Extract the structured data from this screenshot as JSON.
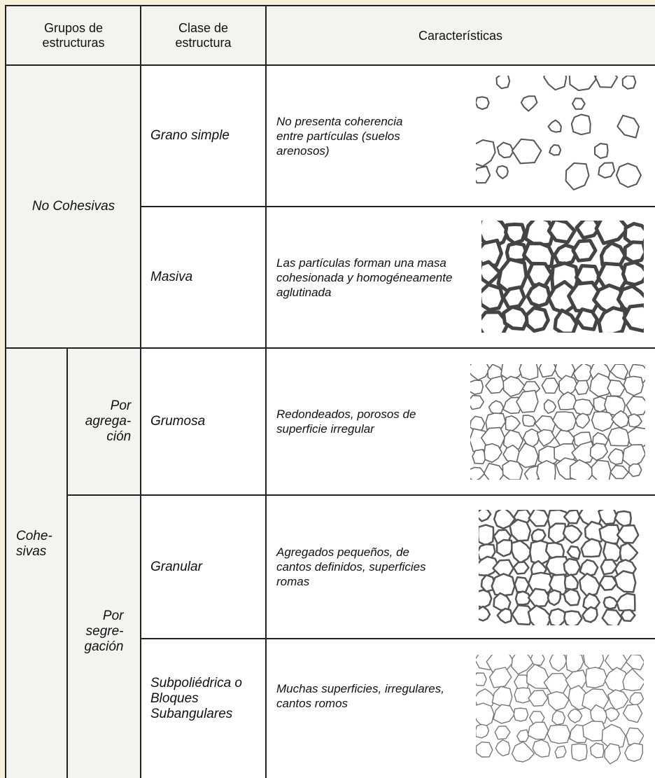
{
  "table": {
    "headers": [
      "Grupos de estructuras",
      "Clase de estructura",
      "Características"
    ],
    "groups": [
      {
        "label": "No Cohesivas",
        "classes": [
          {
            "name": "Grano simple",
            "description": "No presenta coherencia entre partículas (suelos arenosos)"
          },
          {
            "name": "Masiva",
            "description": "Las partículas forman una masa cohesionada y homogéneamente aglutinada"
          }
        ]
      },
      {
        "label": "Cohe-\nsivas",
        "subgroups": [
          {
            "label": "Por\nagrega-\nción",
            "classes": [
              {
                "name": "Grumosa",
                "description": "Redondeados, porosos de superficie irregular"
              }
            ]
          },
          {
            "label": "Por\nsegre-\ngación",
            "classes": [
              {
                "name": "Granular",
                "description": "Agregados pequeños, de cantos definidos, superficies romas"
              },
              {
                "name": "Subpoliédrica o Bloques Subangulares",
                "description": "Muchas superficies, irregulares, cantos romos"
              }
            ]
          }
        ]
      }
    ]
  }
}
